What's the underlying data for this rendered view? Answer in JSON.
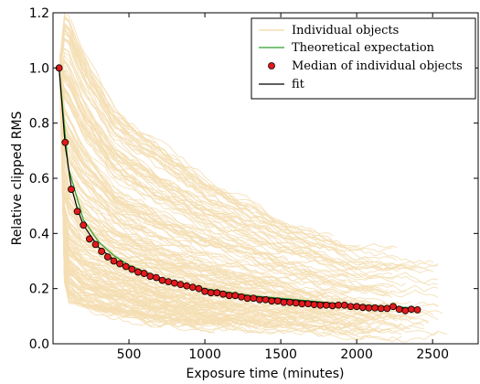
{
  "chart_data": {
    "type": "line",
    "title": "",
    "xlabel": "Exposure time (minutes)",
    "ylabel": "Relative clipped RMS",
    "xlim": [
      0,
      2800
    ],
    "ylim": [
      0.0,
      1.2
    ],
    "xticks": [
      500,
      1000,
      1500,
      2000,
      2500
    ],
    "yticks": [
      0.0,
      0.2,
      0.4,
      0.6,
      0.8,
      1.0,
      1.2
    ],
    "xtick_labels": [
      "500",
      "1000",
      "1500",
      "2000",
      "2500"
    ],
    "ytick_labels": [
      "0.0",
      "0.2",
      "0.4",
      "0.6",
      "0.8",
      "1.0",
      "1.2"
    ],
    "grid": false,
    "legend_position": "top-right",
    "colors": {
      "individual": "#f5deb3",
      "theoretical": "#2ca02c",
      "median_fill": "#e31a1c",
      "median_edge": "#000000",
      "fit": "#000000"
    },
    "series": [
      {
        "name": "Individual objects",
        "style": "band of many light lines",
        "envelope_x": [
          50,
          100,
          200,
          400,
          700,
          1000,
          1500,
          2000,
          2500
        ],
        "envelope_upper": [
          1.2,
          1.2,
          1.05,
          0.85,
          0.72,
          0.6,
          0.45,
          0.35,
          0.32
        ],
        "envelope_lower": [
          0.3,
          0.15,
          0.12,
          0.1,
          0.07,
          0.06,
          0.05,
          0.04,
          0.04
        ]
      },
      {
        "name": "Theoretical expectation",
        "style": "line",
        "x": [
          40,
          100,
          200,
          300,
          400,
          500,
          700,
          1000,
          1300,
          1600,
          1900,
          2200,
          2400
        ],
        "y": [
          1.0,
          0.64,
          0.45,
          0.37,
          0.32,
          0.285,
          0.24,
          0.2,
          0.175,
          0.16,
          0.145,
          0.135,
          0.13
        ]
      },
      {
        "name": "Median of individual objects",
        "style": "markers",
        "x": [
          40,
          80,
          120,
          160,
          200,
          240,
          280,
          320,
          360,
          400,
          440,
          480,
          520,
          560,
          600,
          640,
          680,
          720,
          760,
          800,
          840,
          880,
          920,
          960,
          1000,
          1040,
          1080,
          1120,
          1160,
          1200,
          1240,
          1280,
          1320,
          1360,
          1400,
          1440,
          1480,
          1520,
          1560,
          1600,
          1640,
          1680,
          1720,
          1760,
          1800,
          1840,
          1880,
          1920,
          1960,
          2000,
          2040,
          2080,
          2120,
          2160,
          2200,
          2240,
          2280,
          2320,
          2360,
          2400
        ],
        "y": [
          1.0,
          0.73,
          0.56,
          0.48,
          0.43,
          0.38,
          0.36,
          0.335,
          0.315,
          0.3,
          0.29,
          0.28,
          0.27,
          0.26,
          0.255,
          0.245,
          0.24,
          0.23,
          0.225,
          0.22,
          0.215,
          0.21,
          0.205,
          0.2,
          0.19,
          0.185,
          0.185,
          0.18,
          0.175,
          0.175,
          0.17,
          0.165,
          0.165,
          0.16,
          0.16,
          0.155,
          0.155,
          0.15,
          0.15,
          0.148,
          0.145,
          0.145,
          0.142,
          0.14,
          0.14,
          0.138,
          0.14,
          0.14,
          0.135,
          0.135,
          0.132,
          0.13,
          0.13,
          0.128,
          0.128,
          0.135,
          0.125,
          0.12,
          0.125,
          0.123
        ]
      },
      {
        "name": "fit",
        "style": "line",
        "x": [
          40,
          80,
          120,
          160,
          200,
          300,
          400,
          500,
          700,
          1000,
          1300,
          1600,
          1900,
          2200,
          2400
        ],
        "y": [
          1.0,
          0.72,
          0.57,
          0.49,
          0.43,
          0.35,
          0.305,
          0.275,
          0.23,
          0.195,
          0.172,
          0.157,
          0.143,
          0.133,
          0.127
        ]
      }
    ]
  }
}
